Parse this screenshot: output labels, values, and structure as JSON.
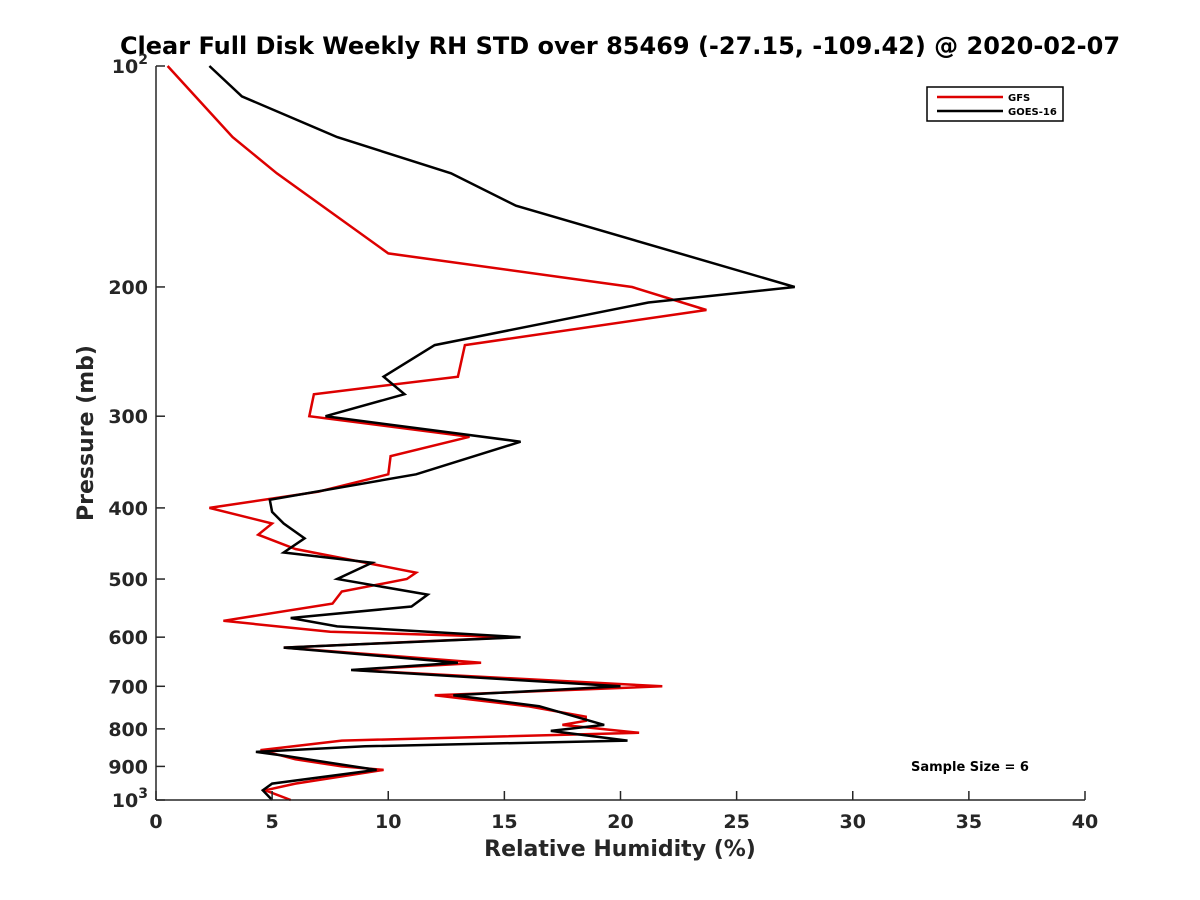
{
  "chart_data": {
    "type": "line",
    "title": "Clear Full Disk Weekly RH STD over 85469 (-27.15, -109.42) @ 2020-02-07",
    "xlabel": "Relative Humidity (%)",
    "ylabel": "Pressure (mb)",
    "xlim": [
      0,
      40
    ],
    "ylim": [
      100,
      1000
    ],
    "y_scale": "log",
    "y_reversed": true,
    "grid": false,
    "legend_position": "top-right",
    "x_ticks": [
      "0",
      "5",
      "10",
      "15",
      "20",
      "25",
      "30",
      "35",
      "40"
    ],
    "y_ticks": [
      {
        "value": 100,
        "base": "10",
        "exp": "2"
      },
      {
        "value": 200,
        "label": "200"
      },
      {
        "value": 300,
        "label": "300"
      },
      {
        "value": 400,
        "label": "400"
      },
      {
        "value": 500,
        "label": "500"
      },
      {
        "value": 600,
        "label": "600"
      },
      {
        "value": 700,
        "label": "700"
      },
      {
        "value": 800,
        "label": "800"
      },
      {
        "value": 900,
        "label": "900"
      },
      {
        "value": 1000,
        "base": "10",
        "exp": "3"
      }
    ],
    "annotation": "Sample Size = 6",
    "series": [
      {
        "name": "GFS",
        "color": "#dd0000",
        "points": [
          {
            "x": 0.5,
            "y": 100
          },
          {
            "x": 3.3,
            "y": 125
          },
          {
            "x": 5.2,
            "y": 140
          },
          {
            "x": 10.0,
            "y": 180
          },
          {
            "x": 20.5,
            "y": 200
          },
          {
            "x": 23.7,
            "y": 215
          },
          {
            "x": 13.3,
            "y": 240
          },
          {
            "x": 13.0,
            "y": 265
          },
          {
            "x": 6.8,
            "y": 280
          },
          {
            "x": 6.6,
            "y": 300
          },
          {
            "x": 13.5,
            "y": 320
          },
          {
            "x": 10.1,
            "y": 340
          },
          {
            "x": 10.0,
            "y": 360
          },
          {
            "x": 7.0,
            "y": 380
          },
          {
            "x": 2.3,
            "y": 400
          },
          {
            "x": 5.0,
            "y": 420
          },
          {
            "x": 4.4,
            "y": 435
          },
          {
            "x": 6.0,
            "y": 455
          },
          {
            "x": 11.2,
            "y": 490
          },
          {
            "x": 10.8,
            "y": 500
          },
          {
            "x": 8.0,
            "y": 520
          },
          {
            "x": 7.6,
            "y": 540
          },
          {
            "x": 2.9,
            "y": 570
          },
          {
            "x": 7.5,
            "y": 590
          },
          {
            "x": 15.5,
            "y": 600
          },
          {
            "x": 5.5,
            "y": 620
          },
          {
            "x": 14.0,
            "y": 650
          },
          {
            "x": 8.5,
            "y": 665
          },
          {
            "x": 21.8,
            "y": 700
          },
          {
            "x": 12.0,
            "y": 720
          },
          {
            "x": 16.0,
            "y": 745
          },
          {
            "x": 18.5,
            "y": 770
          },
          {
            "x": 18.5,
            "y": 780
          },
          {
            "x": 17.5,
            "y": 790
          },
          {
            "x": 20.8,
            "y": 810
          },
          {
            "x": 8.0,
            "y": 830
          },
          {
            "x": 4.5,
            "y": 855
          },
          {
            "x": 6.0,
            "y": 880
          },
          {
            "x": 8.0,
            "y": 900
          },
          {
            "x": 9.8,
            "y": 910
          },
          {
            "x": 6.0,
            "y": 950
          },
          {
            "x": 4.7,
            "y": 970
          },
          {
            "x": 5.8,
            "y": 1000
          }
        ]
      },
      {
        "name": "GOES-16",
        "color": "#000000",
        "points": [
          {
            "x": 2.3,
            "y": 100
          },
          {
            "x": 3.7,
            "y": 110
          },
          {
            "x": 7.8,
            "y": 125
          },
          {
            "x": 12.7,
            "y": 140
          },
          {
            "x": 15.5,
            "y": 155
          },
          {
            "x": 27.5,
            "y": 200
          },
          {
            "x": 21.2,
            "y": 210
          },
          {
            "x": 12.0,
            "y": 240
          },
          {
            "x": 9.8,
            "y": 265
          },
          {
            "x": 10.7,
            "y": 280
          },
          {
            "x": 7.3,
            "y": 300
          },
          {
            "x": 15.7,
            "y": 325
          },
          {
            "x": 11.2,
            "y": 360
          },
          {
            "x": 4.9,
            "y": 390
          },
          {
            "x": 5.0,
            "y": 405
          },
          {
            "x": 5.5,
            "y": 420
          },
          {
            "x": 6.4,
            "y": 440
          },
          {
            "x": 5.5,
            "y": 460
          },
          {
            "x": 9.3,
            "y": 475
          },
          {
            "x": 7.8,
            "y": 500
          },
          {
            "x": 11.7,
            "y": 525
          },
          {
            "x": 11.0,
            "y": 545
          },
          {
            "x": 5.8,
            "y": 565
          },
          {
            "x": 7.8,
            "y": 580
          },
          {
            "x": 15.7,
            "y": 600
          },
          {
            "x": 5.5,
            "y": 620
          },
          {
            "x": 13.0,
            "y": 650
          },
          {
            "x": 8.4,
            "y": 665
          },
          {
            "x": 20.0,
            "y": 700
          },
          {
            "x": 12.8,
            "y": 720
          },
          {
            "x": 16.5,
            "y": 745
          },
          {
            "x": 19.3,
            "y": 790
          },
          {
            "x": 17.0,
            "y": 805
          },
          {
            "x": 20.3,
            "y": 830
          },
          {
            "x": 9.0,
            "y": 845
          },
          {
            "x": 4.3,
            "y": 860
          },
          {
            "x": 5.5,
            "y": 870
          },
          {
            "x": 8.5,
            "y": 900
          },
          {
            "x": 9.5,
            "y": 910
          },
          {
            "x": 5.0,
            "y": 950
          },
          {
            "x": 4.6,
            "y": 970
          },
          {
            "x": 5.0,
            "y": 1000
          }
        ]
      }
    ]
  }
}
